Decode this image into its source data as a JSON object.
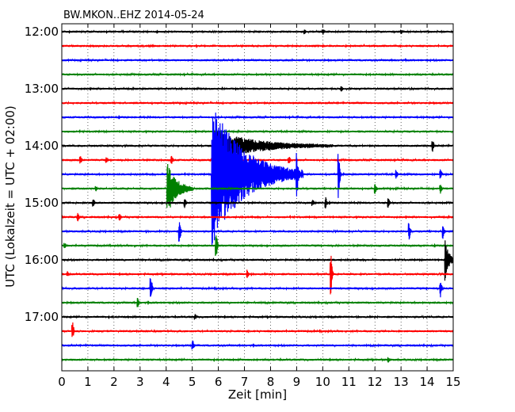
{
  "chart_data": {
    "type": "line",
    "title": "BW.MKON..EHZ 2014-05-24",
    "xlabel": "Zeit  [min]",
    "ylabel": "UTC (Lokalzeit = UTC + 02:00)",
    "xlim": [
      0,
      15
    ],
    "x_ticks": [
      "0",
      "1",
      "2",
      "3",
      "4",
      "5",
      "6",
      "7",
      "8",
      "9",
      "10",
      "11",
      "12",
      "13",
      "14",
      "15"
    ],
    "y_ticks": [
      "12:00",
      "13:00",
      "14:00",
      "15:00",
      "16:00",
      "17:00"
    ],
    "grid": "vertical dotted",
    "trace_colors": [
      "#000000",
      "#ff0000",
      "#0000ff",
      "#008000"
    ],
    "trace_start_times": [
      "12:00",
      "12:15",
      "12:30",
      "12:45",
      "13:00",
      "13:15",
      "13:30",
      "13:45",
      "14:00",
      "14:15",
      "14:30",
      "14:45",
      "15:00",
      "15:15",
      "15:30",
      "15:45",
      "16:00",
      "16:15",
      "16:30",
      "16:45",
      "17:00",
      "17:15",
      "17:30",
      "17:45"
    ],
    "events": [
      {
        "trace": 0,
        "minute": 9.3,
        "amp": 0.25
      },
      {
        "trace": 0,
        "minute": 10.0,
        "amp": 0.3
      },
      {
        "trace": 0,
        "minute": 13.0,
        "amp": 0.2
      },
      {
        "trace": 4,
        "minute": 10.7,
        "amp": 0.4
      },
      {
        "trace": 8,
        "minute": 14.2,
        "amp": 0.8
      },
      {
        "trace": 8,
        "minute": 5.9,
        "amp": 2.0,
        "duration": 4.5,
        "decay": true
      },
      {
        "trace": 9,
        "minute": 0.7,
        "amp": 0.5
      },
      {
        "trace": 9,
        "minute": 1.7,
        "amp": 0.3
      },
      {
        "trace": 9,
        "minute": 4.2,
        "amp": 0.5
      },
      {
        "trace": 9,
        "minute": 8.7,
        "amp": 0.4
      },
      {
        "trace": 10,
        "minute": 5.75,
        "amp": 10.0,
        "duration": 3.5,
        "decay": true
      },
      {
        "trace": 10,
        "minute": 9.0,
        "amp": 2.5
      },
      {
        "trace": 10,
        "minute": 10.6,
        "amp": 3.5
      },
      {
        "trace": 10,
        "minute": 12.8,
        "amp": 0.5
      },
      {
        "trace": 10,
        "minute": 14.5,
        "amp": 0.6
      },
      {
        "trace": 11,
        "minute": 4.05,
        "amp": 3.5,
        "duration": 1.0,
        "decay": true
      },
      {
        "trace": 11,
        "minute": 1.3,
        "amp": 0.3
      },
      {
        "trace": 11,
        "minute": 12.0,
        "amp": 0.6
      },
      {
        "trace": 11,
        "minute": 14.5,
        "amp": 0.6
      },
      {
        "trace": 12,
        "minute": 1.2,
        "amp": 0.5
      },
      {
        "trace": 12,
        "minute": 4.7,
        "amp": 0.6
      },
      {
        "trace": 12,
        "minute": 9.6,
        "amp": 0.4
      },
      {
        "trace": 12,
        "minute": 10.1,
        "amp": 0.8
      },
      {
        "trace": 12,
        "minute": 12.5,
        "amp": 0.6
      },
      {
        "trace": 13,
        "minute": 0.6,
        "amp": 0.5
      },
      {
        "trace": 13,
        "minute": 2.2,
        "amp": 0.4
      },
      {
        "trace": 14,
        "minute": 4.5,
        "amp": 1.5
      },
      {
        "trace": 14,
        "minute": 13.3,
        "amp": 1.2
      },
      {
        "trace": 14,
        "minute": 14.6,
        "amp": 1.0
      },
      {
        "trace": 15,
        "minute": 0.1,
        "amp": 0.3
      },
      {
        "trace": 15,
        "minute": 5.9,
        "amp": 2.0
      },
      {
        "trace": 16,
        "minute": 14.7,
        "amp": 2.5,
        "duration": 0.4,
        "decay": true
      },
      {
        "trace": 17,
        "minute": 10.3,
        "amp": 3.0
      },
      {
        "trace": 17,
        "minute": 7.1,
        "amp": 0.5
      },
      {
        "trace": 17,
        "minute": 0.2,
        "amp": 0.3
      },
      {
        "trace": 18,
        "minute": 3.4,
        "amp": 2.0
      },
      {
        "trace": 18,
        "minute": 14.5,
        "amp": 1.2
      },
      {
        "trace": 19,
        "minute": 2.9,
        "amp": 0.6
      },
      {
        "trace": 20,
        "minute": 5.1,
        "amp": 0.3
      },
      {
        "trace": 21,
        "minute": 0.4,
        "amp": 1.3
      },
      {
        "trace": 22,
        "minute": 5.0,
        "amp": 0.7
      },
      {
        "trace": 23,
        "minute": 12.5,
        "amp": 0.3
      }
    ]
  }
}
